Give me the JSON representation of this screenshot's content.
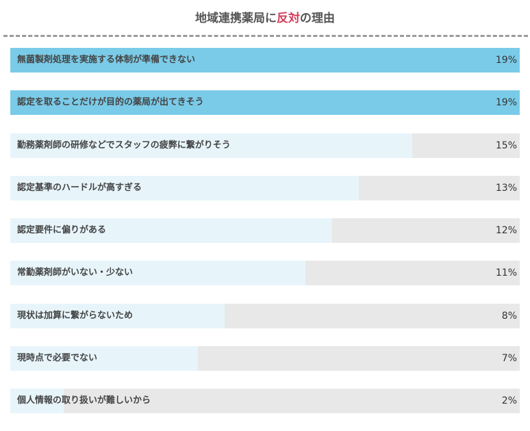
{
  "title": {
    "part1": "地域連携薬局に",
    "accent": "反対",
    "part2": "の理由"
  },
  "colors": {
    "top_bar": "#7acbe8",
    "bar": "#e7f5fb",
    "track": "#e8e8e8",
    "accent": "#d23c5a"
  },
  "chart_data": {
    "type": "bar",
    "orientation": "horizontal",
    "xlim": [
      0,
      19
    ],
    "categories": [
      "無菌製剤処理を実施する体制が準備できない",
      "認定を取ることだけが目的の薬局が出てきそう",
      "勤務薬剤師の研修などでスタッフの疲弊に繋がりそう",
      "認定基準のハードルが高すぎる",
      "認定要件に偏りがある",
      "常勤薬剤師がいない・少ない",
      "現状は加算に繋がらないため",
      "現時点で必要でない",
      "個人情報の取り扱いが難しいから"
    ],
    "values": [
      19,
      19,
      15,
      13,
      12,
      11,
      8,
      7,
      2
    ],
    "value_labels": [
      "19%",
      "19%",
      "15%",
      "13%",
      "12%",
      "11%",
      "8%",
      "7%",
      "2%"
    ]
  }
}
